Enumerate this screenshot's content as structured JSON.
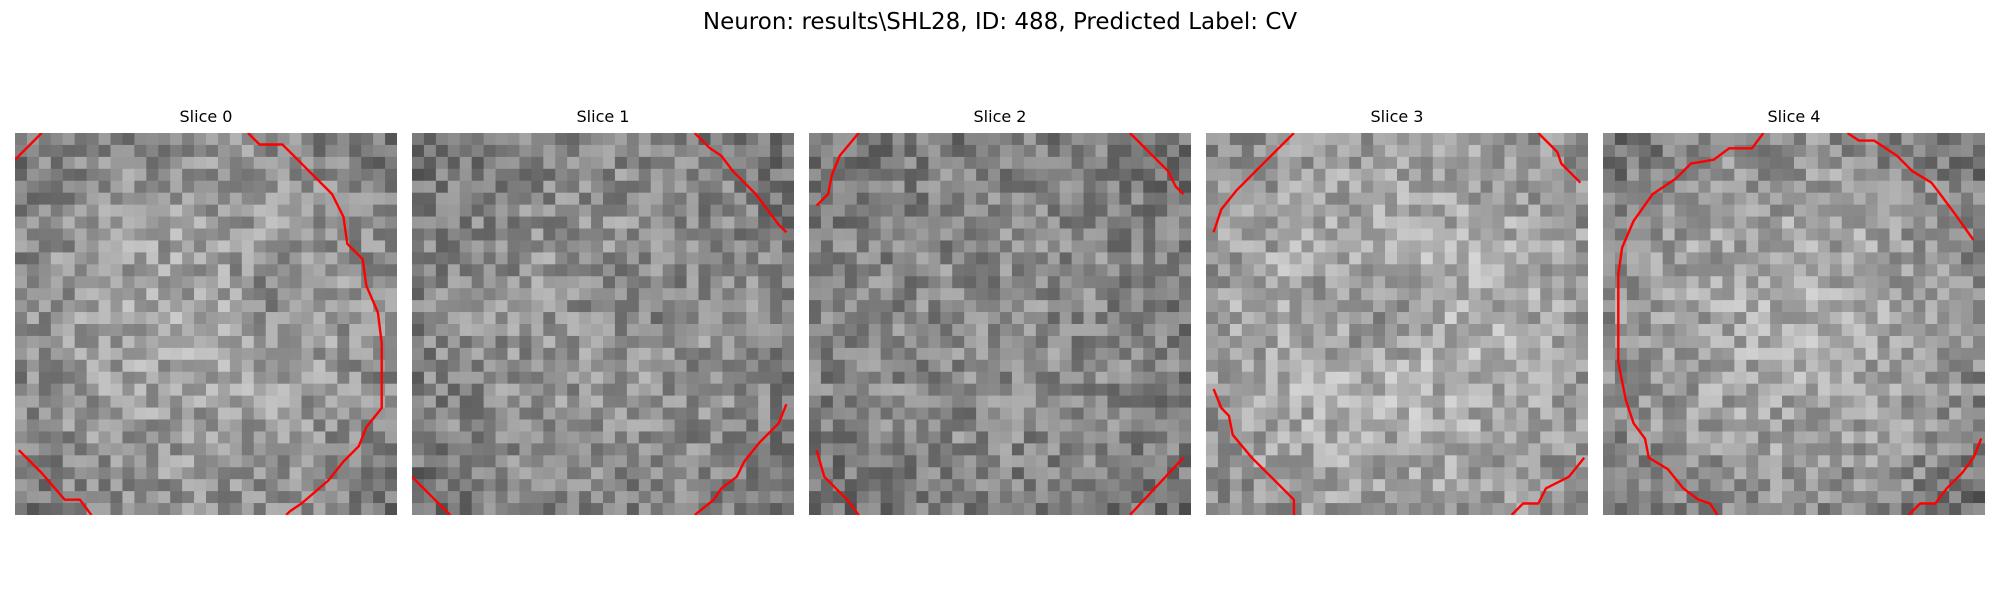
{
  "figure": {
    "suptitle": "Neuron: results\\SHL28, ID: 488, Predicted Label: CV"
  },
  "panels": [
    {
      "title": "Slice 0"
    },
    {
      "title": "Slice 1"
    },
    {
      "title": "Slice 2"
    },
    {
      "title": "Slice 3"
    },
    {
      "title": "Slice 4"
    }
  ],
  "colors": {
    "contour": "#ff0000",
    "colormap": "gray"
  }
}
